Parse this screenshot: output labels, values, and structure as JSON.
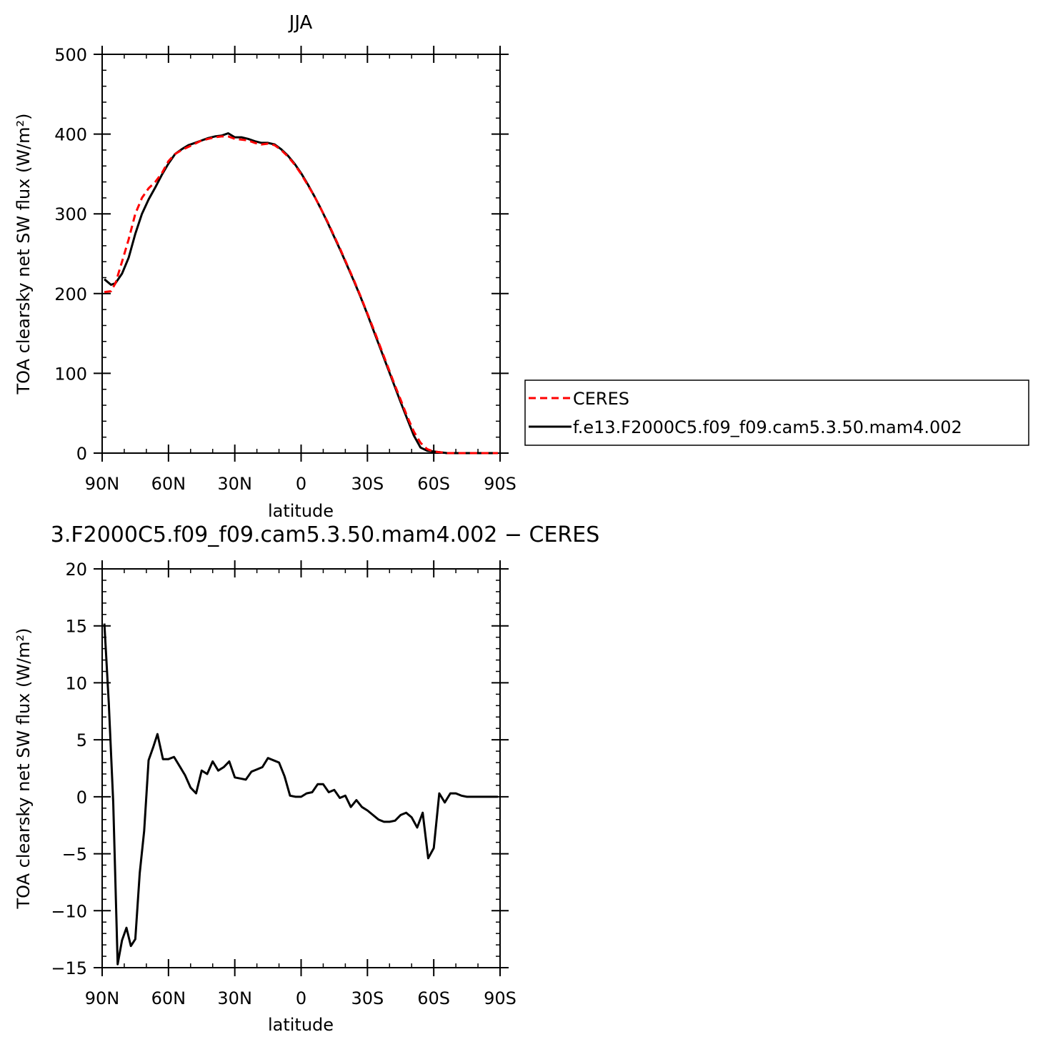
{
  "chart_data": [
    {
      "type": "line",
      "title": "JJA",
      "xlabel": "latitude",
      "ylabel": "TOA clearsky net SW flux (W/m²)",
      "ylim": [
        0,
        500
      ],
      "xlim": [
        90,
        -90
      ],
      "xtick_values": [
        90,
        60,
        30,
        0,
        -30,
        -60,
        -90
      ],
      "xtick_labels": [
        "90N",
        "60N",
        "30N",
        "0",
        "30S",
        "60S",
        "90S"
      ],
      "ytick_values": [
        0,
        100,
        200,
        300,
        400,
        500
      ],
      "ytick_labels": [
        "0",
        "100",
        "200",
        "300",
        "400",
        "500"
      ],
      "grid": false,
      "legend_position": "right",
      "series": [
        {
          "name": "CERES",
          "color": "#ff0000",
          "style": "dashed",
          "x": [
            89,
            86,
            84,
            81,
            78,
            75,
            72,
            69,
            66,
            63,
            60,
            57,
            54,
            51,
            48,
            45,
            42,
            39,
            36,
            33,
            30,
            27,
            24,
            21,
            18,
            15,
            12,
            9,
            6,
            3,
            0,
            -3,
            -6,
            -9,
            -12,
            -15,
            -18,
            -21,
            -24,
            -27,
            -30,
            -33,
            -36,
            -39,
            -42,
            -45,
            -48,
            -51,
            -54,
            -57,
            -60,
            -63,
            -66,
            -69,
            -72,
            -75,
            -78,
            -81,
            -84,
            -87,
            -89
          ],
          "values": [
            202,
            203,
            213,
            240,
            268,
            300,
            320,
            332,
            340,
            351,
            366,
            375,
            380,
            384,
            388,
            392,
            394,
            396,
            397,
            397,
            394,
            393,
            392,
            389,
            387,
            388,
            386,
            380,
            372,
            362,
            350,
            336,
            322,
            306,
            290,
            272,
            254,
            235,
            216,
            196,
            175,
            154,
            132,
            110,
            88,
            67,
            46,
            27,
            13,
            5,
            2,
            1,
            0,
            0,
            0,
            0,
            0,
            0,
            0,
            0,
            0
          ]
        },
        {
          "name": "f.e13.F2000C5.f09_f09.cam5.3.50.mam4.002",
          "color": "#000000",
          "style": "solid",
          "x": [
            89,
            86,
            84,
            81,
            78,
            75,
            72,
            69,
            66,
            63,
            60,
            57,
            54,
            51,
            48,
            45,
            42,
            39,
            36,
            33,
            30,
            27,
            24,
            21,
            18,
            15,
            12,
            9,
            6,
            3,
            0,
            -3,
            -6,
            -9,
            -12,
            -15,
            -18,
            -21,
            -24,
            -27,
            -30,
            -33,
            -36,
            -39,
            -42,
            -45,
            -48,
            -51,
            -54,
            -57,
            -60,
            -63,
            -66,
            -69,
            -72,
            -75,
            -78,
            -81,
            -84,
            -87,
            -89
          ],
          "values": [
            218,
            211,
            213,
            225,
            245,
            275,
            300,
            318,
            333,
            349,
            363,
            375,
            381,
            386,
            389,
            392,
            395,
            397,
            398,
            401,
            396,
            396,
            394,
            391,
            389,
            389,
            387,
            381,
            373,
            363,
            351,
            337,
            322,
            306,
            289,
            271,
            253,
            234,
            215,
            195,
            174,
            152,
            130,
            108,
            86,
            64,
            43,
            22,
            7,
            3,
            2,
            1,
            0,
            0,
            0,
            0,
            0,
            0,
            0,
            0,
            0
          ]
        }
      ]
    },
    {
      "type": "line",
      "title": "3.F2000C5.f09_f09.cam5.3.50.mam4.002 − CERES",
      "xlabel": "latitude",
      "ylabel": "TOA clearsky net SW flux (W/m²)",
      "ylim": [
        -15,
        20
      ],
      "xlim": [
        90,
        -90
      ],
      "xtick_values": [
        90,
        60,
        30,
        0,
        -30,
        -60,
        -90
      ],
      "xtick_labels": [
        "90N",
        "60N",
        "30N",
        "0",
        "30S",
        "60S",
        "90S"
      ],
      "ytick_values": [
        -15,
        -10,
        -5,
        0,
        5,
        10,
        15,
        20
      ],
      "ytick_labels": [
        "−15",
        "−10",
        "−5",
        "0",
        "5",
        "10",
        "15",
        "20"
      ],
      "grid": false,
      "series": [
        {
          "color": "#000000",
          "style": "solid",
          "x": [
            89,
            87,
            85,
            83,
            81,
            79,
            77,
            75,
            73,
            71,
            69,
            67,
            65,
            62.5,
            60,
            57.5,
            55,
            52.5,
            50,
            47.5,
            45,
            42.5,
            40,
            37.5,
            35,
            32.5,
            30,
            27.5,
            25,
            22.5,
            20,
            17.5,
            15,
            12.5,
            10,
            7.5,
            5,
            2.5,
            0,
            -2.5,
            -5,
            -7.5,
            -10,
            -12.5,
            -15,
            -17.5,
            -20,
            -22.5,
            -25,
            -27.5,
            -30,
            -32.5,
            -35,
            -37.5,
            -40,
            -42.5,
            -45,
            -47.5,
            -50,
            -52.5,
            -55,
            -57.5,
            -60,
            -62.5,
            -65,
            -67.5,
            -70,
            -72.5,
            -75,
            -77.5,
            -80,
            -82.5,
            -85,
            -87.5,
            -89
          ],
          "values": [
            15.2,
            8.2,
            -0.5,
            -14.7,
            -12.6,
            -11.5,
            -13.1,
            -12.5,
            -6.7,
            -3.0,
            3.2,
            4.3,
            5.5,
            3.3,
            3.3,
            3.5,
            2.7,
            1.9,
            0.8,
            0.3,
            2.3,
            2.0,
            3.1,
            2.3,
            2.6,
            3.1,
            1.7,
            1.6,
            1.5,
            2.2,
            2.4,
            2.6,
            3.4,
            3.2,
            3.0,
            1.8,
            0.1,
            0.0,
            0.0,
            0.3,
            0.4,
            1.1,
            1.1,
            0.4,
            0.6,
            -0.1,
            0.1,
            -0.9,
            -0.3,
            -0.9,
            -1.2,
            -1.6,
            -2.0,
            -2.2,
            -2.2,
            -2.1,
            -1.6,
            -1.4,
            -1.8,
            -2.7,
            -1.4,
            -5.4,
            -4.5,
            0.3,
            -0.5,
            0.3,
            0.3,
            0.1,
            0.0,
            0.0,
            0.0,
            0.0,
            0.0,
            0.0,
            0.0
          ]
        }
      ]
    }
  ]
}
